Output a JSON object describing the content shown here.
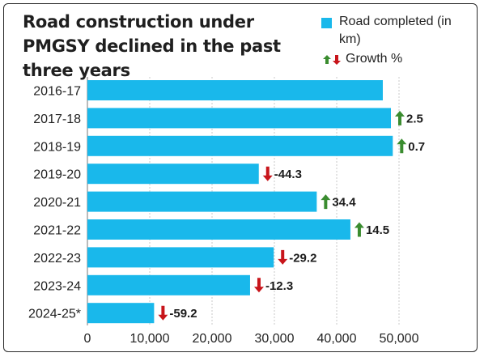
{
  "title": "Road construction under PMGSY declined in the past three years",
  "legend": {
    "road_label": "Road completed (in km)",
    "growth_label": "Growth %",
    "bar_color": "#19b8eb",
    "up_color": "#3a8c2f",
    "down_color": "#c8151b"
  },
  "chart_data": {
    "type": "bar",
    "orientation": "horizontal",
    "title": "Road construction under PMGSY declined in the past three years",
    "categories": [
      "2016-17",
      "2017-18",
      "2018-19",
      "2019-20",
      "2020-21",
      "2021-22",
      "2022-23",
      "2023-24",
      "2024-25*"
    ],
    "series": [
      {
        "name": "Road completed (in km)",
        "values": [
          47400,
          48700,
          49000,
          27500,
          36800,
          42200,
          29900,
          26100,
          10700
        ]
      },
      {
        "name": "Growth %",
        "values": [
          null,
          2.5,
          0.7,
          -44.3,
          34.4,
          14.5,
          -29.2,
          -12.3,
          -59.2
        ]
      }
    ],
    "growth_labels": [
      "",
      "2.5",
      "0.7",
      "-44.3",
      "34.4",
      "14.5",
      "-29.2",
      "-12.3",
      "-59.2"
    ],
    "xlim": [
      0,
      50000
    ],
    "xticks": [
      0,
      10000,
      20000,
      30000,
      40000,
      50000
    ],
    "xtick_labels": [
      "0",
      "10,000",
      "20,000",
      "30,000",
      "40,000",
      "50,000"
    ],
    "grid": "vertical",
    "legend_position": "top-right"
  }
}
